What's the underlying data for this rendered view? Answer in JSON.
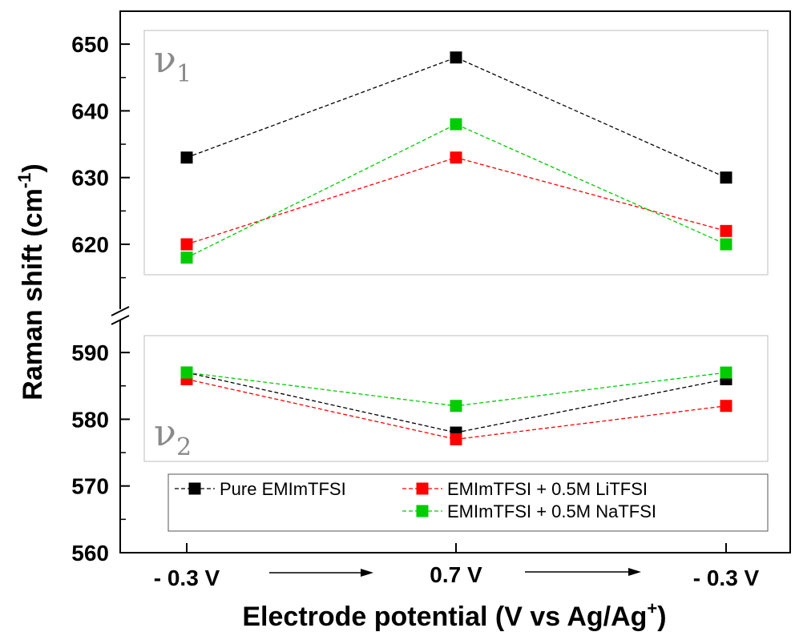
{
  "chart_data": {
    "type": "line",
    "categories": [
      "- 0.3 V",
      "0.7 V",
      "- 0.3 V"
    ],
    "series": [
      {
        "name": "Pure EMImTFSI",
        "color": "#000000",
        "v1": [
          633,
          648,
          630
        ],
        "v2": [
          587,
          578,
          586
        ]
      },
      {
        "name": "EMImTFSI + 0.5M LiTFSI",
        "color": "#ff0000",
        "v1": [
          620,
          633,
          622
        ],
        "v2": [
          586,
          577,
          582
        ]
      },
      {
        "name": "EMImTFSI + 0.5M NaTFSI",
        "color": "#00cc00",
        "v1": [
          618,
          638,
          620
        ],
        "v2": [
          587,
          582,
          587
        ]
      }
    ],
    "y_ticks": [
      "560",
      "570",
      "580",
      "590",
      "620",
      "630",
      "640",
      "650"
    ],
    "ylabel_main": "Raman shift (cm",
    "ylabel_sup": "-1",
    "ylabel_close": ")",
    "xlabel_main": "Electrode potential (V vs Ag/Ag",
    "xlabel_sup": "+",
    "xlabel_close": ")",
    "panel_v1_symbol": "ν",
    "panel_v1_sub": "1",
    "panel_v2_symbol": "ν",
    "panel_v2_sub": "2",
    "axis_break": "broken y axis between 590 and 620",
    "marker": "square",
    "line_style": "dashed",
    "legend_position": "bottom"
  }
}
